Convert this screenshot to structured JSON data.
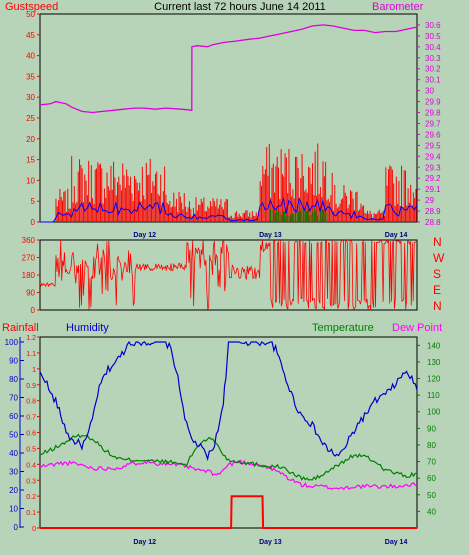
{
  "colors": {
    "background": "#b8d4b8",
    "frame": "#000000",
    "gust": "#ff0000",
    "wind": "#0000ff",
    "rain_rate": "#008000",
    "barometer": "#dd00dd",
    "humidity": "#0000cc",
    "temperature": "#008000",
    "dew_point": "#ff00ff",
    "rainfall": "#ff0000"
  },
  "chart_data": [
    {
      "type": "line",
      "panel": "wind-barometer",
      "title": "Current last 72 hours June 14 2011",
      "left_axis_title": "Gustspeed",
      "right_axis_title": "Barometer",
      "x_ticks": [
        "Day 12",
        "Day 13",
        "Day 14"
      ],
      "x_range": [
        0,
        72
      ],
      "x_tick_positions": [
        20,
        44,
        68
      ],
      "left_ylim": [
        0,
        50
      ],
      "left_ticks": [
        "0",
        "5",
        "10",
        "15",
        "20",
        "25",
        "30",
        "35",
        "40",
        "45",
        "50"
      ],
      "right_ylim": [
        28.8,
        30.7
      ],
      "right_ticks": [
        "28.8",
        "28.9",
        "29",
        "29.1",
        "29.2",
        "29.3",
        "29.4",
        "29.5",
        "29.6",
        "29.7",
        "29.8",
        "29.9",
        "30",
        "30.1",
        "30.2",
        "30.3",
        "30.4",
        "30.5",
        "30.6"
      ],
      "series": [
        {
          "name": "Barometer",
          "axis": "right",
          "x": [
            0,
            2,
            3,
            5,
            6,
            8,
            10,
            12,
            14,
            16,
            18,
            20,
            22,
            24,
            27,
            29,
            29.01,
            30,
            32,
            33,
            35,
            37,
            40,
            42,
            44,
            46,
            48,
            50,
            52,
            54,
            56,
            58,
            60,
            62,
            64,
            66,
            68,
            70,
            72
          ],
          "y": [
            29.87,
            29.88,
            29.9,
            29.88,
            29.85,
            29.81,
            29.8,
            29.81,
            29.82,
            29.83,
            29.84,
            29.84,
            29.83,
            29.84,
            29.83,
            29.82,
            30.4,
            30.41,
            30.4,
            30.42,
            30.44,
            30.45,
            30.47,
            30.48,
            30.5,
            30.52,
            30.54,
            30.56,
            30.59,
            30.6,
            30.59,
            30.57,
            30.55,
            30.55,
            30.53,
            30.54,
            30.54,
            30.56,
            30.58
          ]
        }
      ]
    },
    {
      "type": "scatter",
      "panel": "wind-direction",
      "left_ticks": [
        "0",
        "90",
        "180",
        "270",
        "360"
      ],
      "ylim": [
        0,
        360
      ],
      "right_labels": [
        "N",
        "W",
        "S",
        "E",
        "N"
      ],
      "x_range": [
        0,
        72
      ]
    },
    {
      "type": "line",
      "panel": "rain-humidity-temperature",
      "left_axis_title": "Rainfall",
      "humidity_axis_title": "Humidity",
      "temperature_axis_title": "Temperature",
      "dewpoint_axis_title": "Dew Point",
      "x_ticks": [
        "Day 12",
        "Day 13",
        "Day 14"
      ],
      "x_range": [
        0,
        72
      ],
      "x_tick_positions": [
        20,
        44,
        68
      ],
      "rain_ticks": [
        "0",
        "0.1",
        "0.2",
        "0.3",
        "0.4",
        "0.5",
        "0.6",
        "0.7",
        "0.8",
        "0.9",
        "1",
        "1.1",
        "1.2"
      ],
      "rain_ylim": [
        0,
        1.2
      ],
      "humidity_ticks": [
        "0",
        "10",
        "20",
        "30",
        "40",
        "50",
        "60",
        "70",
        "80",
        "90",
        "100"
      ],
      "humidity_ylim": [
        0,
        100
      ],
      "temp_ticks": [
        "40",
        "50",
        "60",
        "70",
        "80",
        "90",
        "100",
        "110",
        "120",
        "130",
        "140"
      ],
      "temp_ylim": [
        30,
        145
      ],
      "series": [
        {
          "name": "Humidity",
          "axis": "humidity",
          "x": [
            0,
            1,
            2,
            3,
            4,
            5,
            6,
            7,
            8,
            9,
            10,
            11,
            12,
            13,
            14,
            15,
            16,
            17,
            18,
            19,
            20,
            22,
            24,
            25,
            26,
            27,
            28,
            29,
            30,
            31,
            32,
            33,
            34,
            35,
            35.5,
            36,
            38,
            40,
            42,
            44,
            45,
            46,
            47,
            48,
            49,
            50,
            51,
            52,
            53,
            54,
            55,
            56,
            57,
            58,
            59,
            60,
            61,
            62,
            63,
            64,
            65,
            66,
            67,
            68,
            69,
            70,
            71,
            72
          ],
          "y": [
            83,
            80,
            72,
            68,
            60,
            52,
            47,
            46,
            44,
            48,
            58,
            72,
            80,
            85,
            88,
            91,
            95,
            100,
            100,
            100,
            100,
            100,
            100,
            96,
            85,
            70,
            55,
            47,
            45,
            42,
            38,
            42,
            52,
            68,
            82,
            100,
            100,
            100,
            100,
            100,
            96,
            88,
            80,
            72,
            65,
            60,
            58,
            55,
            50,
            45,
            42,
            40,
            38,
            42,
            47,
            52,
            57,
            60,
            64,
            68,
            70,
            72,
            74,
            78,
            81,
            84,
            80,
            74
          ]
        },
        {
          "name": "Temperature",
          "axis": "temperature",
          "x": [
            0,
            2,
            4,
            6,
            8,
            10,
            12,
            14,
            16,
            18,
            20,
            22,
            24,
            26,
            28,
            29,
            30,
            31,
            32,
            33,
            34,
            35,
            36,
            38,
            40,
            42,
            44,
            46,
            48,
            50,
            52,
            54,
            56,
            58,
            60,
            62,
            64,
            66,
            68,
            70,
            72
          ],
          "y": [
            74,
            77,
            80,
            84,
            86,
            84,
            78,
            73,
            71,
            71,
            71,
            70,
            70,
            69,
            68,
            74,
            79,
            82,
            84,
            83,
            80,
            74,
            71,
            70,
            69,
            68,
            67,
            67,
            63,
            60,
            59,
            62,
            66,
            70,
            74,
            73,
            70,
            65,
            63,
            61,
            63
          ]
        },
        {
          "name": "Dew Point",
          "axis": "temperature",
          "x": [
            0,
            2,
            4,
            6,
            8,
            10,
            12,
            14,
            16,
            18,
            20,
            22,
            24,
            26,
            28,
            30,
            32,
            34,
            36,
            38,
            40,
            42,
            44,
            46,
            48,
            50,
            52,
            54,
            56,
            58,
            60,
            62,
            64,
            66,
            68,
            70,
            72
          ],
          "y": [
            67,
            68,
            69,
            69,
            68,
            66,
            66,
            66,
            67,
            69,
            70,
            69,
            69,
            68,
            67,
            65,
            64,
            62,
            68,
            70,
            69,
            68,
            66,
            63,
            59,
            56,
            55,
            55,
            54,
            54,
            55,
            55,
            55,
            55,
            55,
            56,
            56
          ]
        },
        {
          "name": "Rainfall",
          "axis": "rain",
          "x": [
            0,
            36.5,
            36.6,
            42.5,
            42.6,
            72
          ],
          "y": [
            0,
            0,
            0.2,
            0.2,
            0,
            0
          ]
        }
      ]
    }
  ]
}
